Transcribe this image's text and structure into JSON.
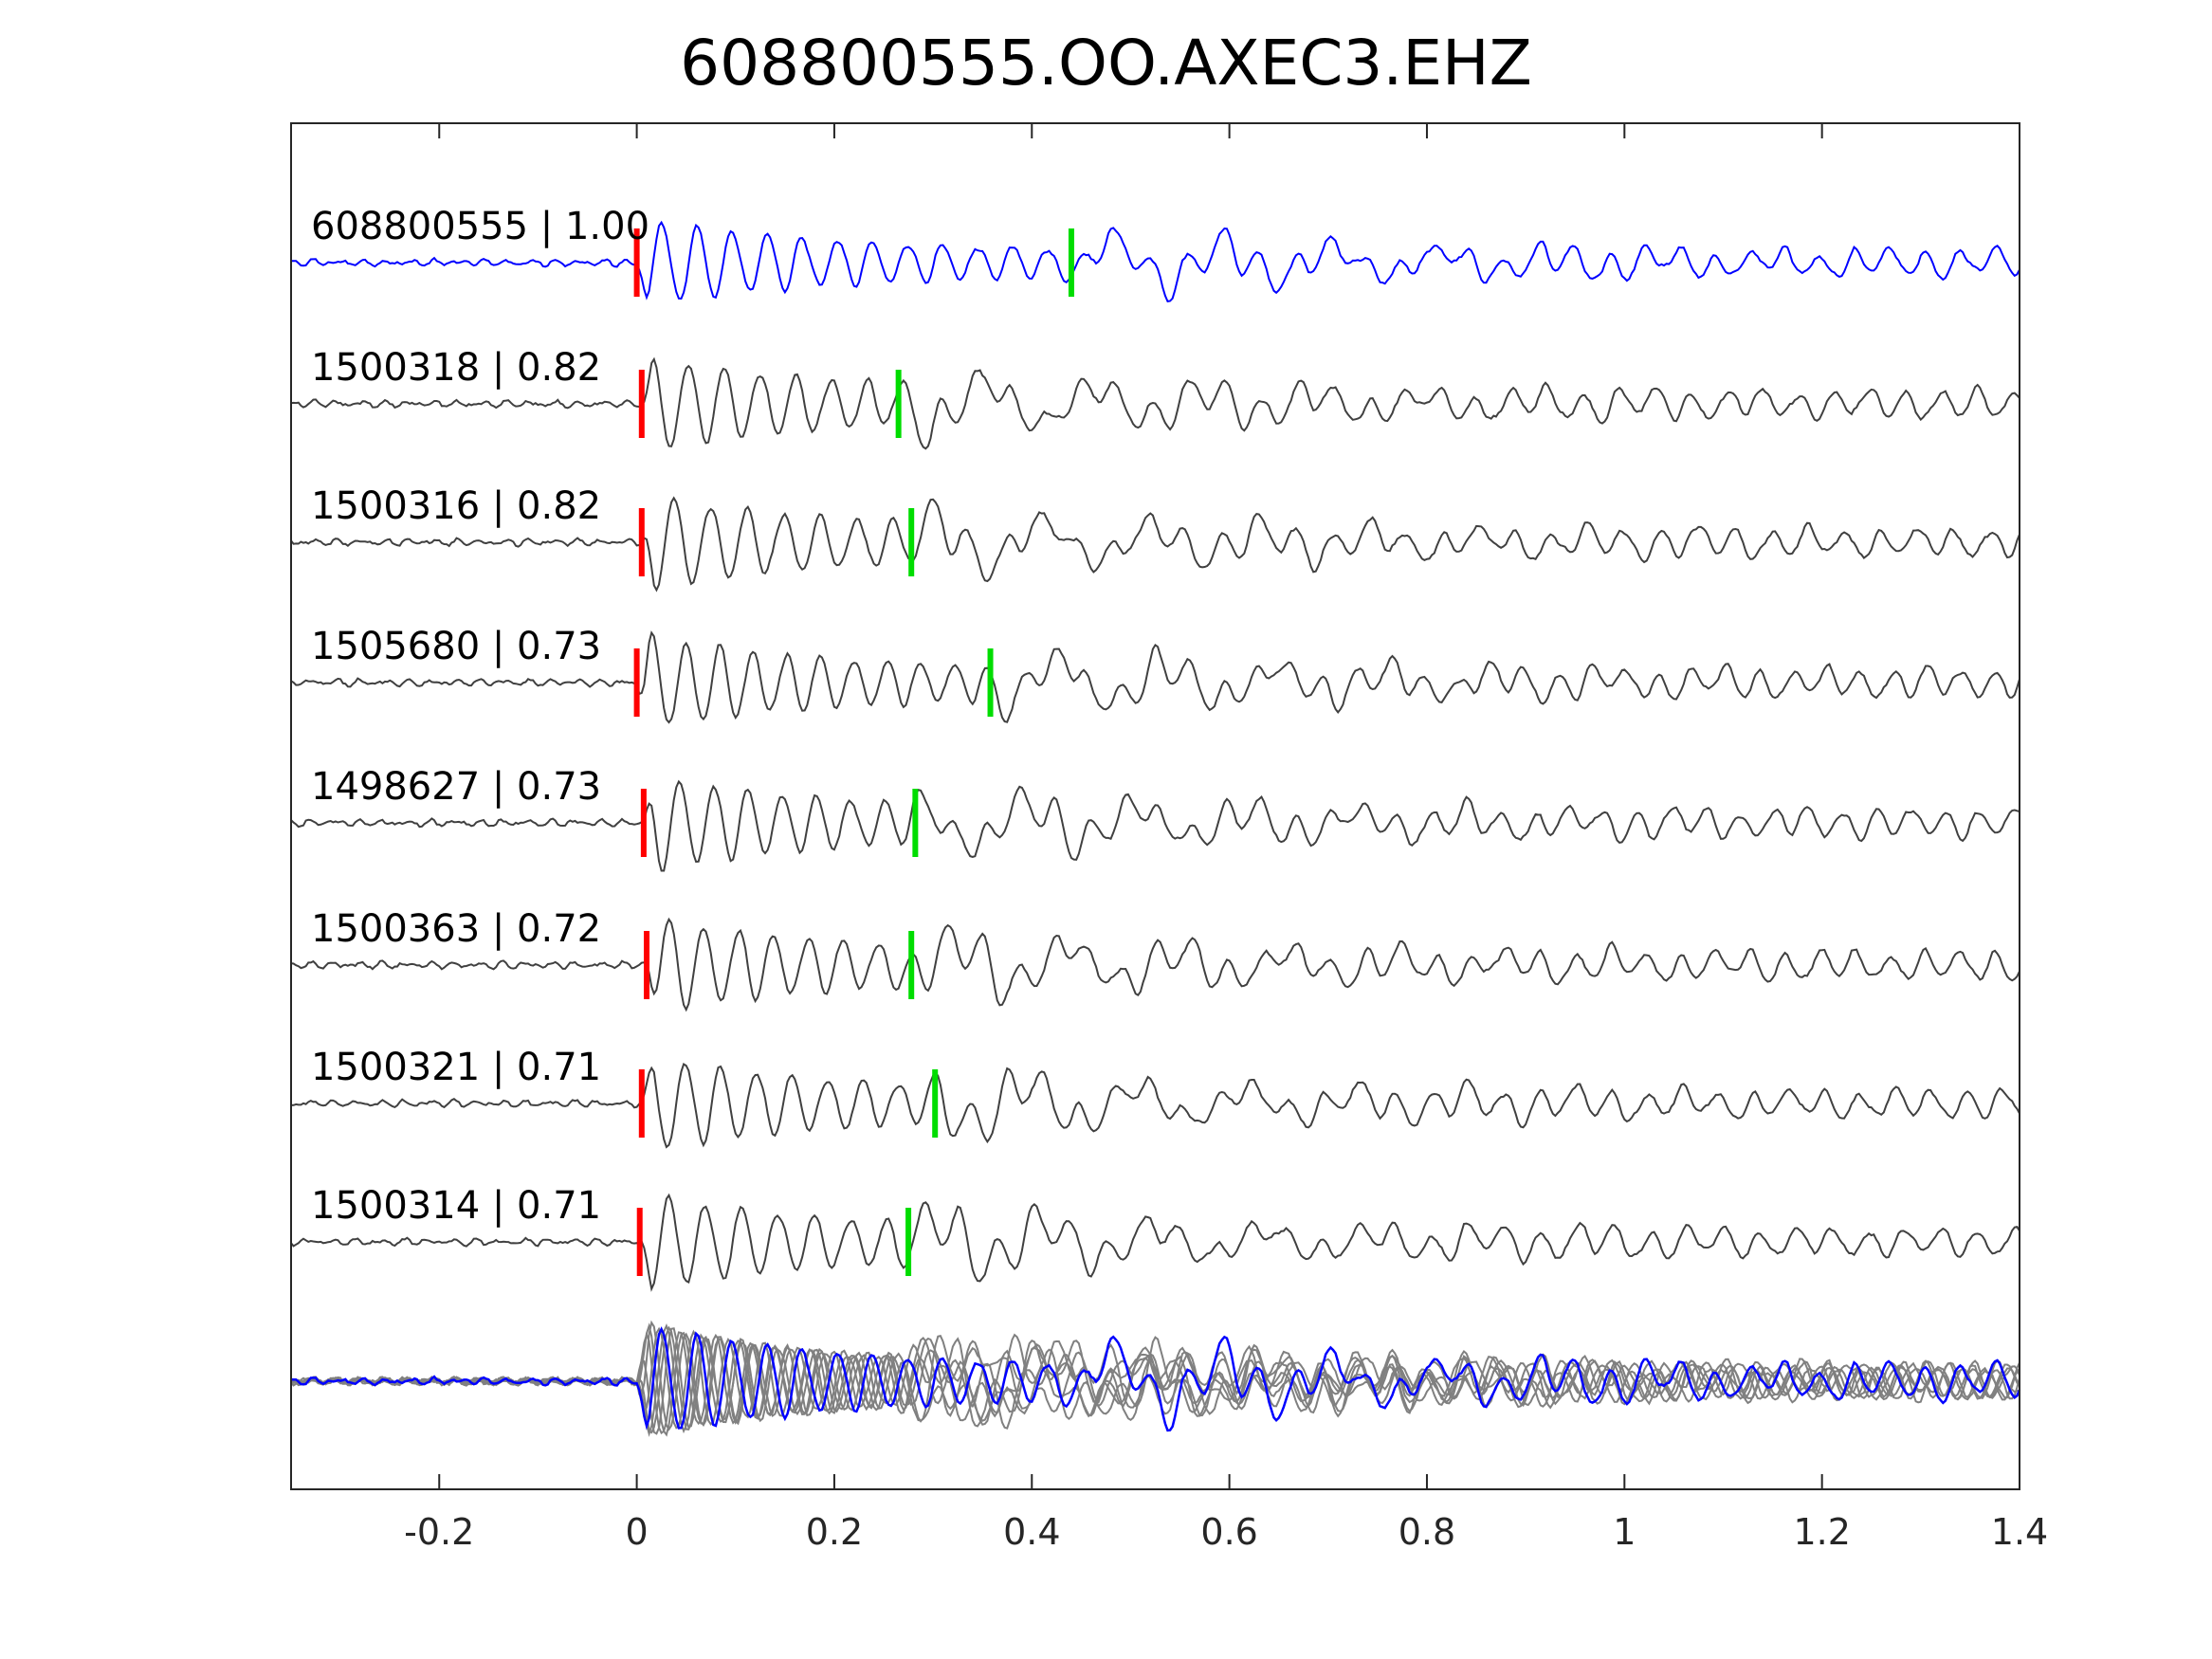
{
  "chart_data": {
    "type": "line",
    "title": "608800555.OO.AXEC3.EHZ",
    "xlabel": "",
    "ylabel": "",
    "xlim": [
      -0.35,
      1.4
    ],
    "xticks": [
      -0.2,
      0,
      0.2,
      0.4,
      0.6,
      0.8,
      1,
      1.2,
      1.4
    ],
    "xtick_labels": [
      "-0.2",
      "0",
      "0.2",
      "0.4",
      "0.6",
      "0.8",
      "1",
      "1.2",
      "1.4"
    ],
    "grid": false,
    "legend": "none",
    "colors": {
      "reference": "#0000ff",
      "template": "#404040",
      "overlay_template": "#808080",
      "p_pick": "#ff0000",
      "s_pick": "#00dd00",
      "axes": "#262626"
    },
    "series": [
      {
        "id": "608800555",
        "cc": "1.00",
        "label": "608800555 | 1.00",
        "role": "reference",
        "p_pick": 0.0,
        "s_pick": 0.44
      },
      {
        "id": "1500318",
        "cc": "0.82",
        "label": "1500318 | 0.82",
        "role": "template",
        "p_pick": 0.005,
        "s_pick": 0.265
      },
      {
        "id": "1500316",
        "cc": "0.82",
        "label": "1500316 | 0.82",
        "role": "template",
        "p_pick": 0.005,
        "s_pick": 0.278
      },
      {
        "id": "1505680",
        "cc": "0.73",
        "label": "1505680 | 0.73",
        "role": "template",
        "p_pick": 0.0,
        "s_pick": 0.358
      },
      {
        "id": "1498627",
        "cc": "0.73",
        "label": "1498627 | 0.73",
        "role": "template",
        "p_pick": 0.007,
        "s_pick": 0.282
      },
      {
        "id": "1500363",
        "cc": "0.72",
        "label": "1500363 | 0.72",
        "role": "template",
        "p_pick": 0.01,
        "s_pick": 0.278
      },
      {
        "id": "1500321",
        "cc": "0.71",
        "label": "1500321 | 0.71",
        "role": "template",
        "p_pick": 0.005,
        "s_pick": 0.302
      },
      {
        "id": "1500314",
        "cc": "0.71",
        "label": "1500314 | 0.71",
        "role": "template",
        "p_pick": 0.003,
        "s_pick": 0.275
      }
    ],
    "overlay": {
      "description_type": "stacked overlay of all traces aligned at P pick"
    }
  }
}
